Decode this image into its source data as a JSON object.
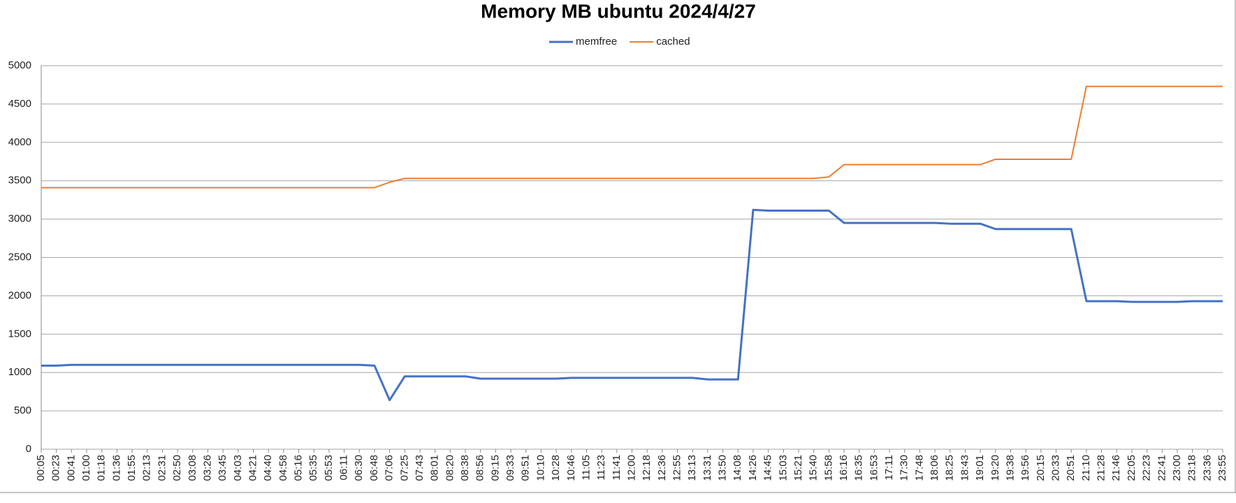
{
  "chart_data": {
    "type": "line",
    "title": "Memory MB ubuntu  2024/4/27",
    "categories": [
      "00:05",
      "00:23",
      "00:41",
      "01:00",
      "01:18",
      "01:36",
      "01:55",
      "02:13",
      "02:31",
      "02:50",
      "03:08",
      "03:26",
      "03:45",
      "04:03",
      "04:21",
      "04:40",
      "04:58",
      "05:16",
      "05:35",
      "05:53",
      "06:11",
      "06:30",
      "06:48",
      "07:06",
      "07:25",
      "07:43",
      "08:01",
      "08:20",
      "08:38",
      "08:56",
      "09:15",
      "09:33",
      "09:51",
      "10:10",
      "10:28",
      "10:46",
      "11:05",
      "11:23",
      "11:41",
      "12:00",
      "12:18",
      "12:36",
      "12:55",
      "13:13",
      "13:31",
      "13:50",
      "14:08",
      "14:26",
      "14:45",
      "15:03",
      "15:21",
      "15:40",
      "15:58",
      "16:16",
      "16:35",
      "16:53",
      "17:11",
      "17:30",
      "17:48",
      "18:06",
      "18:25",
      "18:43",
      "19:01",
      "19:20",
      "19:38",
      "19:56",
      "20:15",
      "20:33",
      "20:51",
      "21:10",
      "21:28",
      "21:46",
      "22:05",
      "22:23",
      "22:41",
      "23:00",
      "23:18",
      "23:36",
      "23:55"
    ],
    "series": [
      {
        "name": "memfree",
        "color": "#4472c4",
        "values": [
          1090,
          1090,
          1100,
          1100,
          1100,
          1100,
          1100,
          1100,
          1100,
          1100,
          1100,
          1100,
          1100,
          1100,
          1100,
          1100,
          1100,
          1100,
          1100,
          1100,
          1100,
          1100,
          1090,
          640,
          950,
          950,
          950,
          950,
          950,
          920,
          920,
          920,
          920,
          920,
          920,
          930,
          930,
          930,
          930,
          930,
          930,
          930,
          930,
          930,
          910,
          910,
          910,
          3120,
          3110,
          3110,
          3110,
          3110,
          3110,
          2950,
          2950,
          2950,
          2950,
          2950,
          2950,
          2950,
          2940,
          2940,
          2940,
          2870,
          2870,
          2870,
          2870,
          2870,
          2870,
          1930,
          1930,
          1930,
          1920,
          1920,
          1920,
          1920,
          1930,
          1930,
          1930
        ]
      },
      {
        "name": "cached",
        "color": "#ed7d31",
        "values": [
          3410,
          3410,
          3410,
          3410,
          3410,
          3410,
          3410,
          3410,
          3410,
          3410,
          3410,
          3410,
          3410,
          3410,
          3410,
          3410,
          3410,
          3410,
          3410,
          3410,
          3410,
          3410,
          3410,
          3480,
          3530,
          3530,
          3530,
          3530,
          3530,
          3530,
          3530,
          3530,
          3530,
          3530,
          3530,
          3530,
          3530,
          3530,
          3530,
          3530,
          3530,
          3530,
          3530,
          3530,
          3530,
          3530,
          3530,
          3530,
          3530,
          3530,
          3530,
          3530,
          3550,
          3710,
          3710,
          3710,
          3710,
          3710,
          3710,
          3710,
          3710,
          3710,
          3710,
          3780,
          3780,
          3780,
          3780,
          3780,
          3780,
          4730,
          4730,
          4730,
          4730,
          4730,
          4730,
          4730,
          4730,
          4730,
          4730
        ]
      }
    ],
    "ylim": [
      0,
      5000
    ],
    "yticks": [
      0,
      500,
      1000,
      1500,
      2000,
      2500,
      3000,
      3500,
      4000,
      4500,
      5000
    ],
    "grid": true,
    "legend": "top"
  }
}
